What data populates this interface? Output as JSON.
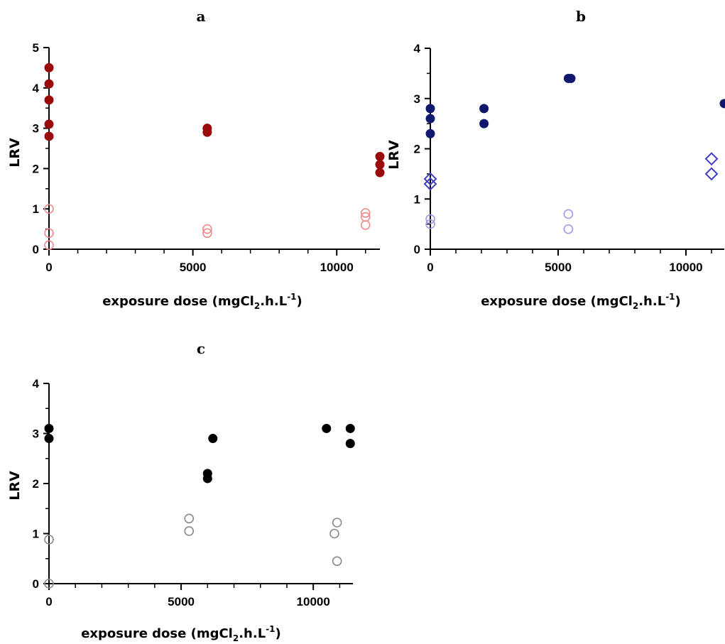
{
  "chart_data": [
    {
      "type": "scatter",
      "panel_label": "a",
      "ylabel": "LRV",
      "xlabel": {
        "main": "exposure dose (mgCl",
        "sub": "2",
        "mid": ".h.L",
        "sup": "-1",
        "tail": ")"
      },
      "xlim": [
        0,
        11500
      ],
      "ylim": [
        0,
        5
      ],
      "xticks": [
        0,
        5000,
        10000
      ],
      "xtick_labels": [
        "0",
        "5000",
        "10000"
      ],
      "yticks": [
        0,
        1,
        2,
        3,
        4,
        5
      ],
      "ytick_labels": [
        "0",
        "1",
        "2",
        "3",
        "4",
        "5"
      ],
      "x_minor_step": 1000,
      "y_minor_step": 0.5,
      "grid": false,
      "series": [
        {
          "marker": "filled-circle",
          "color": "#9b0a0a",
          "points": [
            [
              0,
              4.5
            ],
            [
              0,
              4.1
            ],
            [
              0,
              3.7
            ],
            [
              0,
              3.1
            ],
            [
              0,
              2.8
            ],
            [
              5500,
              3.0
            ],
            [
              5500,
              2.9
            ],
            [
              11500,
              2.3
            ],
            [
              11500,
              2.1
            ],
            [
              11500,
              1.9
            ]
          ]
        },
        {
          "marker": "open-circle",
          "color": "#f08a8a",
          "points": [
            [
              0,
              1.0
            ],
            [
              0,
              0.4
            ],
            [
              0,
              0.1
            ],
            [
              5500,
              0.5
            ],
            [
              5500,
              0.4
            ],
            [
              11000,
              0.9
            ],
            [
              11000,
              0.8
            ],
            [
              11000,
              0.6
            ]
          ]
        }
      ]
    },
    {
      "type": "scatter",
      "panel_label": "b",
      "ylabel": "LRV",
      "xlabel": {
        "main": "exposure dose (mgCl",
        "sub": "2",
        "mid": ".h.L",
        "sup": "-1",
        "tail": ")"
      },
      "xlim": [
        0,
        11500
      ],
      "ylim": [
        0,
        4
      ],
      "xticks": [
        0,
        5000,
        10000
      ],
      "xtick_labels": [
        "0",
        "5000",
        "10000"
      ],
      "yticks": [
        0,
        1,
        2,
        3,
        4
      ],
      "ytick_labels": [
        "0",
        "1",
        "2",
        "3",
        "4"
      ],
      "x_minor_step": 1000,
      "y_minor_step": 0.5,
      "grid": false,
      "series": [
        {
          "marker": "filled-circle",
          "color": "#10186e",
          "points": [
            [
              0,
              2.8
            ],
            [
              0,
              2.6
            ],
            [
              0,
              2.3
            ],
            [
              2100,
              2.8
            ],
            [
              2100,
              2.5
            ],
            [
              5400,
              3.4
            ],
            [
              5500,
              3.4
            ],
            [
              11500,
              2.9
            ]
          ]
        },
        {
          "marker": "open-diamond",
          "color": "#3f3fc8",
          "points": [
            [
              0,
              1.4
            ],
            [
              0,
              1.3
            ],
            [
              11000,
              1.8
            ],
            [
              11000,
              1.5
            ]
          ]
        },
        {
          "marker": "open-circle",
          "color": "#9c9cec",
          "points": [
            [
              0,
              0.6
            ],
            [
              0,
              0.5
            ],
            [
              5400,
              0.7
            ],
            [
              5400,
              0.4
            ]
          ]
        }
      ]
    },
    {
      "type": "scatter",
      "panel_label": "c",
      "ylabel": "LRV",
      "xlabel": {
        "main": "exposure dose (mgCl",
        "sub": "2",
        "mid": ".h.L",
        "sup": "-1",
        "tail": ")"
      },
      "xlim": [
        0,
        11500
      ],
      "ylim": [
        0,
        4
      ],
      "xticks": [
        0,
        5000,
        10000
      ],
      "xtick_labels": [
        "0",
        "5000",
        "10000"
      ],
      "yticks": [
        0,
        1,
        2,
        3,
        4
      ],
      "ytick_labels": [
        "0",
        "1",
        "2",
        "3",
        "4"
      ],
      "x_minor_step": 1000,
      "y_minor_step": 0.5,
      "grid": false,
      "series": [
        {
          "marker": "filled-circle",
          "color": "#000000",
          "points": [
            [
              0,
              3.1
            ],
            [
              0,
              2.9
            ],
            [
              6000,
              2.2
            ],
            [
              6000,
              2.1
            ],
            [
              6200,
              2.9
            ],
            [
              10500,
              3.1
            ],
            [
              11400,
              3.1
            ],
            [
              11400,
              2.8
            ]
          ]
        },
        {
          "marker": "open-circle",
          "color": "#8a8a8a",
          "points": [
            [
              0,
              0.88
            ],
            [
              0,
              0.0
            ],
            [
              5300,
              1.3
            ],
            [
              5300,
              1.05
            ],
            [
              10800,
              1.0
            ],
            [
              10900,
              1.22
            ],
            [
              10900,
              0.45
            ]
          ]
        }
      ]
    }
  ]
}
